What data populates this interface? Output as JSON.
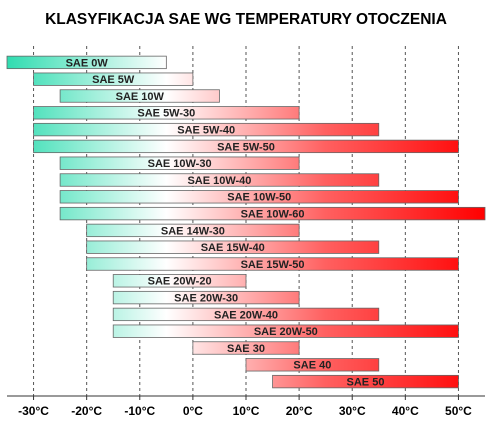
{
  "chart_data": {
    "type": "range_bar",
    "title": "KLASYFIKACJA  SAE  WG TEMPERATURY OTOCZENIA",
    "categories": [
      "SAE 0W",
      "SAE 5W",
      "SAE 10W",
      "SAE 5W-30",
      "SAE 5W-40",
      "SAE 5W-50",
      "SAE 10W-30",
      "SAE 10W-40",
      "SAE 10W-50",
      "SAE 10W-60",
      "SAE 14W-30",
      "SAE 15W-40",
      "SAE 15W-50",
      "SAE 20W-20",
      "SAE 20W-30",
      "SAE 20W-40",
      "SAE 20W-50",
      "SAE 30",
      "SAE 40",
      "SAE 50"
    ],
    "start": [
      -35,
      -30,
      -25,
      -30,
      -30,
      -30,
      -25,
      -25,
      -25,
      -25,
      -20,
      -20,
      -20,
      -15,
      -15,
      -15,
      -15,
      0,
      10,
      15
    ],
    "end": [
      -5,
      0,
      5,
      20,
      35,
      50,
      20,
      35,
      50,
      55,
      20,
      35,
      50,
      10,
      20,
      35,
      50,
      20,
      35,
      50
    ],
    "xlim": [
      -35,
      55
    ],
    "xticks": [
      {
        "value": -30,
        "label": "-30°C"
      },
      {
        "value": -20,
        "label": "-20°C"
      },
      {
        "value": -10,
        "label": "-10°C"
      },
      {
        "value": 0,
        "label": "0°C"
      },
      {
        "value": 10,
        "label": "10°C"
      },
      {
        "value": 20,
        "label": "20°C"
      },
      {
        "value": 30,
        "label": "30°C"
      },
      {
        "value": 40,
        "label": "40°C"
      },
      {
        "value": 50,
        "label": "50°C"
      }
    ],
    "colors": [
      "#30dcb0",
      "#ffffff",
      "#ff6060",
      "#ff0000"
    ],
    "grid": true
  }
}
